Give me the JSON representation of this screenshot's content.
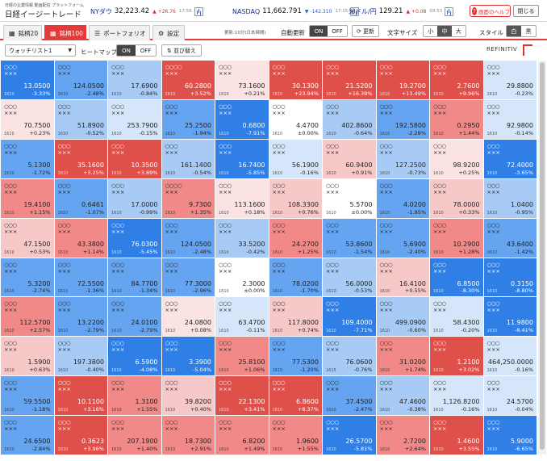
{
  "header": {
    "brand_sub": "日経の企業情報 動画配信 プラットフォーム",
    "brand": "日経イージートレード",
    "tickers": [
      {
        "name": "NYダウ",
        "value": "32,223.42",
        "change": "+26.76",
        "dir": "up",
        "time": "17:56"
      },
      {
        "name": "NASDAQ",
        "value": "11,662.791",
        "change": "-142.310",
        "dir": "dn",
        "time": "17:15"
      },
      {
        "name": "米ドル/円",
        "value": "129.21",
        "change": "+0.08",
        "dir": "up",
        "time": "09:53"
      }
    ],
    "help": "画面のヘルプ",
    "close": "閉じる"
  },
  "tabs": [
    {
      "label": "銘柄20",
      "icon": "▦"
    },
    {
      "label": "銘柄100",
      "icon": "▦"
    },
    {
      "label": "ポートフォリオ",
      "icon": "☰"
    },
    {
      "label": "設定",
      "icon": "⚙"
    }
  ],
  "toolbar": {
    "updated": "更新:10分(日本時間)",
    "auto_label": "自動更新",
    "on": "ON",
    "off": "OFF",
    "refresh": "⟳ 更新",
    "font_label": "文字サイズ",
    "font_small": "小",
    "font_mid": "中",
    "font_large": "大",
    "style_label": "スタイル",
    "style_white": "白",
    "style_black": "黒"
  },
  "toolbar2": {
    "watchlist": "ウォッチリスト1",
    "heatmap_label": "ヒートマップ",
    "on": "ON",
    "off": "OFF",
    "sort": "⇅ 並び替え",
    "provider": "REFINITIV"
  },
  "colors": {
    "red_strong": "#e0504b",
    "red_mid": "#f08987",
    "red_light": "#f7c8c8",
    "red_pale": "#fbe3e3",
    "blue_strong": "#2f7fe6",
    "blue_mid": "#65a4f0",
    "blue_light": "#a8cbf6",
    "blue_pale": "#d5e6fb",
    "neutral": "#ffffff"
  },
  "cells": [
    {
      "name1": "○○○",
      "name2": "×××",
      "code": "1610",
      "price": "13.0500",
      "pct": "-3.33%"
    },
    {
      "name1": "○○○",
      "name2": "×××",
      "code": "1610",
      "price": "124.0500",
      "pct": "-2.48%"
    },
    {
      "name1": "○○○",
      "name2": "×××",
      "code": "1610",
      "price": "17.6900",
      "pct": "-0.84%"
    },
    {
      "name1": "○○○○",
      "name2": "×××",
      "code": "1610",
      "price": "60.2800",
      "pct": "+3.52%"
    },
    {
      "name1": "○○○",
      "name2": "×××",
      "code": "1610",
      "price": "73.1600",
      "pct": "+0.21%"
    },
    {
      "name1": "○○○",
      "name2": "×××",
      "code": "1610",
      "price": "30.1300",
      "pct": "+23.94%"
    },
    {
      "name1": "○○○",
      "name2": "×××",
      "code": "1610",
      "price": "21.5200",
      "pct": "+16.39%"
    },
    {
      "name1": "○○○",
      "name2": "×××",
      "code": "1610",
      "price": "19.2700",
      "pct": "+13.49%"
    },
    {
      "name1": "○○○",
      "name2": "×××",
      "code": "1610",
      "price": "2.7600",
      "pct": "+9.96%"
    },
    {
      "name1": "○○○",
      "name2": "×××",
      "code": "1610",
      "price": "29.8800",
      "pct": "-0.23%"
    },
    {
      "name1": "○○○",
      "name2": "×××",
      "code": "1610",
      "price": "70.7500",
      "pct": "+0.23%"
    },
    {
      "name1": "○○○",
      "name2": "×××",
      "code": "1610",
      "price": "51.8900",
      "pct": "-0.52%"
    },
    {
      "name1": "○○○",
      "name2": "×××",
      "code": "1610",
      "price": "253.7900",
      "pct": "-0.15%"
    },
    {
      "name1": "○○○",
      "name2": "×××",
      "code": "1610",
      "price": "25.2500",
      "pct": "-1.94%"
    },
    {
      "name1": "○○○",
      "name2": "×××",
      "code": "1610",
      "price": "0.6800",
      "pct": "-7.91%"
    },
    {
      "name1": "○○○",
      "name2": "×××",
      "code": "1610",
      "price": "4.4700",
      "pct": "±0.00%"
    },
    {
      "name1": "○○○",
      "name2": "×××",
      "code": "1610",
      "price": "402.8600",
      "pct": "-0.64%"
    },
    {
      "name1": "○○○",
      "name2": "×××",
      "code": "1610",
      "price": "192.5800",
      "pct": "-2.28%"
    },
    {
      "name1": "○○○",
      "name2": "×××",
      "code": "1610",
      "price": "0.2950",
      "pct": "+1.44%"
    },
    {
      "name1": "○○○",
      "name2": "×××",
      "code": "1610",
      "price": "92.9800",
      "pct": "-0.14%"
    },
    {
      "name1": "○○○",
      "name2": "×××",
      "code": "1610",
      "price": "5.1300",
      "pct": "-1.72%"
    },
    {
      "name1": "○○○",
      "name2": "×××",
      "code": "1610",
      "price": "35.1600",
      "pct": "+3.25%"
    },
    {
      "name1": "○○○",
      "name2": "×××",
      "code": "1610",
      "price": "10.3500",
      "pct": "+3.89%"
    },
    {
      "name1": "○○○",
      "name2": "×××",
      "code": "1610",
      "price": "161.1400",
      "pct": "-0.54%"
    },
    {
      "name1": "○○○",
      "name2": "×××",
      "code": "1610",
      "price": "16.7400",
      "pct": "-5.85%"
    },
    {
      "name1": "○○○",
      "name2": "×××",
      "code": "1610",
      "price": "56.1900",
      "pct": "-0.16%"
    },
    {
      "name1": "○○○",
      "name2": "×××",
      "code": "1610",
      "price": "60.9400",
      "pct": "+0.91%"
    },
    {
      "name1": "○○○",
      "name2": "×××",
      "code": "1610",
      "price": "127.2500",
      "pct": "-0.73%"
    },
    {
      "name1": "○○○",
      "name2": "×××",
      "code": "1610",
      "price": "98.9200",
      "pct": "+0.25%"
    },
    {
      "name1": "○○○",
      "name2": "×××",
      "code": "1610",
      "price": "72.4000",
      "pct": "-3.65%"
    },
    {
      "name1": "○○○",
      "name2": "×××",
      "code": "1610",
      "price": "19.4100",
      "pct": "+1.15%"
    },
    {
      "name1": "○○○",
      "name2": "×××",
      "code": "1610",
      "price": "0.6461",
      "pct": "-1.07%"
    },
    {
      "name1": "○○○",
      "name2": "×××",
      "code": "1610",
      "price": "17.0000",
      "pct": "-0.99%"
    },
    {
      "name1": "○○○○",
      "name2": "×××",
      "code": "1610",
      "price": "9.7300",
      "pct": "+1.35%"
    },
    {
      "name1": "○○○",
      "name2": "×××",
      "code": "1610",
      "price": "113.1600",
      "pct": "+0.18%"
    },
    {
      "name1": "○○○",
      "name2": "×××",
      "code": "1610",
      "price": "108.3300",
      "pct": "+0.76%"
    },
    {
      "name1": "○○○",
      "name2": "×××",
      "code": "1610",
      "price": "5.5700",
      "pct": "±0.00%"
    },
    {
      "name1": "○○○",
      "name2": "×××",
      "code": "1610",
      "price": "4.0200",
      "pct": "-1.95%"
    },
    {
      "name1": "○○○",
      "name2": "×××",
      "code": "1610",
      "price": "78.0000",
      "pct": "+0.33%"
    },
    {
      "name1": "○○○",
      "name2": "×××",
      "code": "1610",
      "price": "1.0400",
      "pct": "-0.95%"
    },
    {
      "name1": "○○○",
      "name2": "×××",
      "code": "1610",
      "price": "47.1500",
      "pct": "+0.53%"
    },
    {
      "name1": "○○○",
      "name2": "×××",
      "code": "1610",
      "price": "43.3800",
      "pct": "+1.14%"
    },
    {
      "name1": "○○○",
      "name2": "×××",
      "code": "1610",
      "price": "76.0300",
      "pct": "-5.45%"
    },
    {
      "name1": "○○○",
      "name2": "×××",
      "code": "1610",
      "price": "124.0500",
      "pct": "-2.48%"
    },
    {
      "name1": "○○○",
      "name2": "×××",
      "code": "1610",
      "price": "33.5200",
      "pct": "-0.42%"
    },
    {
      "name1": "○○○",
      "name2": "×××",
      "code": "1610",
      "price": "24.2700",
      "pct": "+1.25%"
    },
    {
      "name1": "○○○",
      "name2": "×××",
      "code": "1610",
      "price": "53.8600",
      "pct": "-1.54%"
    },
    {
      "name1": "○○○",
      "name2": "×××",
      "code": "1610",
      "price": "5.6900",
      "pct": "-2.40%"
    },
    {
      "name1": "○○○",
      "name2": "×××",
      "code": "1610",
      "price": "10.2900",
      "pct": "+1.28%"
    },
    {
      "name1": "○○○",
      "name2": "×××",
      "code": "1610",
      "price": "43.6400",
      "pct": "-1.42%"
    },
    {
      "name1": "○○○",
      "name2": "×××",
      "code": "1610",
      "price": "5.3200",
      "pct": "-2.74%"
    },
    {
      "name1": "○○○",
      "name2": "×××",
      "code": "1610",
      "price": "72.5500",
      "pct": "-1.36%"
    },
    {
      "name1": "○○○",
      "name2": "×××",
      "code": "1610",
      "price": "84.7700",
      "pct": "-1.34%"
    },
    {
      "name1": "○○○",
      "name2": "×××",
      "code": "1610",
      "price": "77.3000",
      "pct": "-2.96%"
    },
    {
      "name1": "○○○",
      "name2": "×××",
      "code": "1610",
      "price": "2.3000",
      "pct": "±0.00%"
    },
    {
      "name1": "○○○",
      "name2": "×××",
      "code": "1610",
      "price": "78.0200",
      "pct": "-1.70%"
    },
    {
      "name1": "○○○",
      "name2": "×××",
      "code": "1610",
      "price": "56.0000",
      "pct": "-0.53%"
    },
    {
      "name1": "○○○",
      "name2": "×××",
      "code": "1610",
      "price": "16.4100",
      "pct": "+0.55%"
    },
    {
      "name1": "○○○",
      "name2": "×××",
      "code": "1610",
      "price": "6.8500",
      "pct": "-8.30%"
    },
    {
      "name1": "○○○",
      "name2": "×××",
      "code": "1610",
      "price": "0.3150",
      "pct": "-8.80%"
    },
    {
      "name1": "○○○",
      "name2": "×××",
      "code": "1610",
      "price": "112.5700",
      "pct": "+2.57%"
    },
    {
      "name1": "○○○",
      "name2": "×××",
      "code": "1610",
      "price": "13.2200",
      "pct": "-2.79%"
    },
    {
      "name1": "○○○",
      "name2": "×××",
      "code": "1610",
      "price": "24.0100",
      "pct": "-2.79%"
    },
    {
      "name1": "○○○",
      "name2": "×××",
      "code": "1610",
      "price": "24.0800",
      "pct": "+0.08%"
    },
    {
      "name1": "○○○",
      "name2": "×××",
      "code": "1610",
      "price": "63.4700",
      "pct": "-0.11%"
    },
    {
      "name1": "○○○",
      "name2": "×××",
      "code": "1610",
      "price": "117.8000",
      "pct": "+0.74%"
    },
    {
      "name1": "○○○",
      "name2": "×××",
      "code": "1610",
      "price": "109.4000",
      "pct": "-7.71%"
    },
    {
      "name1": "○○○",
      "name2": "×××",
      "code": "1610",
      "price": "499.0900",
      "pct": "-0.60%"
    },
    {
      "name1": "○○○",
      "name2": "×××",
      "code": "1610",
      "price": "58.4300",
      "pct": "-0.20%"
    },
    {
      "name1": "○○○",
      "name2": "×××",
      "code": "1610",
      "price": "11.9800",
      "pct": "-8.41%"
    },
    {
      "name1": "○○○",
      "name2": "×××",
      "code": "1610",
      "price": "1.5900",
      "pct": "+0.63%"
    },
    {
      "name1": "○○○",
      "name2": "×××",
      "code": "1610",
      "price": "197.3800",
      "pct": "-0.40%"
    },
    {
      "name1": "○○○",
      "name2": "×××",
      "code": "1610",
      "price": "6.5900",
      "pct": "-4.08%"
    },
    {
      "name1": "○○○",
      "name2": "×××",
      "code": "1610",
      "price": "3.3900",
      "pct": "-5.04%"
    },
    {
      "name1": "○○○",
      "name2": "×××",
      "code": "1610",
      "price": "25.8100",
      "pct": "+1.06%"
    },
    {
      "name1": "○○○",
      "name2": "×××",
      "code": "1610",
      "price": "77.5300",
      "pct": "-1.20%"
    },
    {
      "name1": "○○○",
      "name2": "×××",
      "code": "1615",
      "price": "76.0600",
      "pct": "-0.76%"
    },
    {
      "name1": "○○○",
      "name2": "×××",
      "code": "1610",
      "price": "31.0200",
      "pct": "+1.74%"
    },
    {
      "name1": "○○○",
      "name2": "×××",
      "code": "1610",
      "price": "1.2100",
      "pct": "+3.02%"
    },
    {
      "name1": "○○○",
      "name2": "×××",
      "code": "1610",
      "price": "464,250.0000",
      "pct": "-0.16%"
    },
    {
      "name1": "○○○",
      "name2": "×××",
      "code": "1610",
      "price": "59.5500",
      "pct": "-1.18%"
    },
    {
      "name1": "○○○",
      "name2": "×××",
      "code": "1610",
      "price": "10.1100",
      "pct": "+3.16%"
    },
    {
      "name1": "○○○",
      "name2": "×××",
      "code": "1610",
      "price": "1.3100",
      "pct": "+1.55%"
    },
    {
      "name1": "○○○",
      "name2": "×××",
      "code": "1610",
      "price": "39.8200",
      "pct": "+0.40%"
    },
    {
      "name1": "○○○",
      "name2": "×××",
      "code": "1610",
      "price": "22.1300",
      "pct": "+3.41%"
    },
    {
      "name1": "○○○",
      "name2": "×××",
      "code": "1610",
      "price": "6.8600",
      "pct": "+8.37%"
    },
    {
      "name1": "○○○",
      "name2": "×××",
      "code": "1610",
      "price": "37.4500",
      "pct": "-2.47%"
    },
    {
      "name1": "○○○",
      "name2": "×××",
      "code": "1610",
      "price": "47.4600",
      "pct": "-0.38%"
    },
    {
      "name1": "○○○",
      "name2": "×××",
      "code": "1610",
      "price": "1,126.8200",
      "pct": "-0.16%"
    },
    {
      "name1": "○○○",
      "name2": "×××",
      "code": "1610",
      "price": "24.5700",
      "pct": "-0.04%"
    },
    {
      "name1": "○○○",
      "name2": "×××",
      "code": "1610",
      "price": "24.6500",
      "pct": "-2.84%"
    },
    {
      "name1": "○○○",
      "name2": "×××",
      "code": "1610",
      "price": "0.3623",
      "pct": "+3.96%"
    },
    {
      "name1": "○○○",
      "name2": "×××",
      "code": "1610",
      "price": "207.1900",
      "pct": "+1.40%"
    },
    {
      "name1": "○○○",
      "name2": "×××",
      "code": "1610",
      "price": "18.7300",
      "pct": "+2.91%"
    },
    {
      "name1": "○○○",
      "name2": "×××",
      "code": "1610",
      "price": "6.8200",
      "pct": "+1.49%"
    },
    {
      "name1": "○○○",
      "name2": "×××",
      "code": "1610",
      "price": "1.9600",
      "pct": "+1.55%"
    },
    {
      "name1": "○○○",
      "name2": "×××",
      "code": "1610",
      "price": "26.5700",
      "pct": "-5.81%"
    },
    {
      "name1": "○○○",
      "name2": "×××",
      "code": "1610",
      "price": "2.7200",
      "pct": "+2.64%"
    },
    {
      "name1": "○○○",
      "name2": "×××",
      "code": "1610",
      "price": "1.4600",
      "pct": "+3.55%"
    },
    {
      "name1": "○○○",
      "name2": "×××",
      "code": "1610",
      "price": "5.9000",
      "pct": "-6.65%"
    }
  ]
}
